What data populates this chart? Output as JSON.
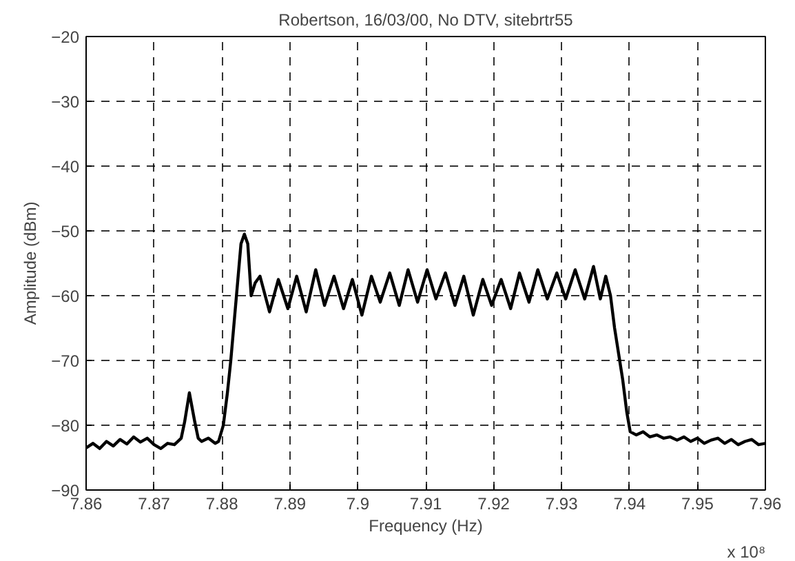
{
  "chart_data": {
    "type": "line",
    "title": "Robertson, 16/03/00, No DTV, sitebrtr55",
    "xlabel": "Frequency (Hz)",
    "ylabel": "Amplitude (dBm)",
    "annotations": [
      "x 10⁸"
    ],
    "xlim": [
      7.86,
      7.96
    ],
    "xticks": [
      7.86,
      7.87,
      7.88,
      7.89,
      7.9,
      7.91,
      7.92,
      7.93,
      7.94,
      7.95,
      7.96
    ],
    "ylim": [
      -90,
      -20
    ],
    "yticks": [
      -90,
      -80,
      -70,
      -60,
      -50,
      -40,
      -30,
      -20
    ],
    "grid": true,
    "marker": "none",
    "line_style": "solid",
    "series": [
      {
        "color": "#000000",
        "x": [
          7.86,
          7.861,
          7.862,
          7.863,
          7.864,
          7.865,
          7.866,
          7.867,
          7.868,
          7.869,
          7.87,
          7.871,
          7.872,
          7.873,
          7.874,
          7.8745,
          7.8752,
          7.876,
          7.8765,
          7.877,
          7.878,
          7.879,
          7.8795,
          7.8802,
          7.8808,
          7.8813,
          7.8818,
          7.8823,
          7.8828,
          7.8833,
          7.8838,
          7.8843,
          7.8849,
          7.8856,
          7.887,
          7.8883,
          7.8897,
          7.891,
          7.8924,
          7.8938,
          7.8951,
          7.8965,
          7.8979,
          7.8992,
          7.9006,
          7.902,
          7.9033,
          7.9047,
          7.9061,
          7.9074,
          7.9088,
          7.9102,
          7.9115,
          7.9129,
          7.9143,
          7.9156,
          7.917,
          7.9184,
          7.9197,
          7.9211,
          7.9225,
          7.9238,
          7.9252,
          7.9265,
          7.9279,
          7.9293,
          7.9306,
          7.932,
          7.9334,
          7.9347,
          7.9357,
          7.9365,
          7.9372,
          7.9378,
          7.9384,
          7.939,
          7.9396,
          7.9401,
          7.941,
          7.942,
          7.943,
          7.944,
          7.945,
          7.946,
          7.947,
          7.948,
          7.949,
          7.95,
          7.951,
          7.952,
          7.953,
          7.954,
          7.955,
          7.956,
          7.957,
          7.958,
          7.959,
          7.96
        ],
        "values": [
          -83.5,
          -82.8,
          -83.6,
          -82.5,
          -83.2,
          -82.2,
          -82.9,
          -81.8,
          -82.6,
          -82.0,
          -83.0,
          -83.6,
          -82.8,
          -83.0,
          -82.0,
          -79.5,
          -75.0,
          -79.5,
          -82.0,
          -82.5,
          -82.0,
          -82.8,
          -82.5,
          -80.0,
          -75.0,
          -70.0,
          -64.0,
          -58.0,
          -52.0,
          -50.5,
          -52.0,
          -60.0,
          -58.0,
          -57.0,
          -62.5,
          -57.5,
          -62.0,
          -57.0,
          -62.5,
          -56.0,
          -61.5,
          -57.0,
          -62.0,
          -57.5,
          -63.0,
          -57.0,
          -61.0,
          -56.5,
          -61.5,
          -56.0,
          -61.0,
          -56.0,
          -60.5,
          -56.5,
          -61.5,
          -57.0,
          -63.0,
          -57.5,
          -61.5,
          -57.5,
          -62.0,
          -56.5,
          -61.0,
          -56.0,
          -60.5,
          -56.5,
          -60.5,
          -56.0,
          -60.5,
          -55.5,
          -60.5,
          -57.0,
          -60.0,
          -65.0,
          -69.0,
          -73.0,
          -78.0,
          -81.0,
          -81.5,
          -81.0,
          -81.8,
          -81.5,
          -82.0,
          -81.8,
          -82.3,
          -81.8,
          -82.5,
          -82.0,
          -82.8,
          -82.3,
          -82.0,
          -82.8,
          -82.2,
          -83.0,
          -82.5,
          -82.2,
          -83.0,
          -82.8
        ]
      }
    ]
  }
}
